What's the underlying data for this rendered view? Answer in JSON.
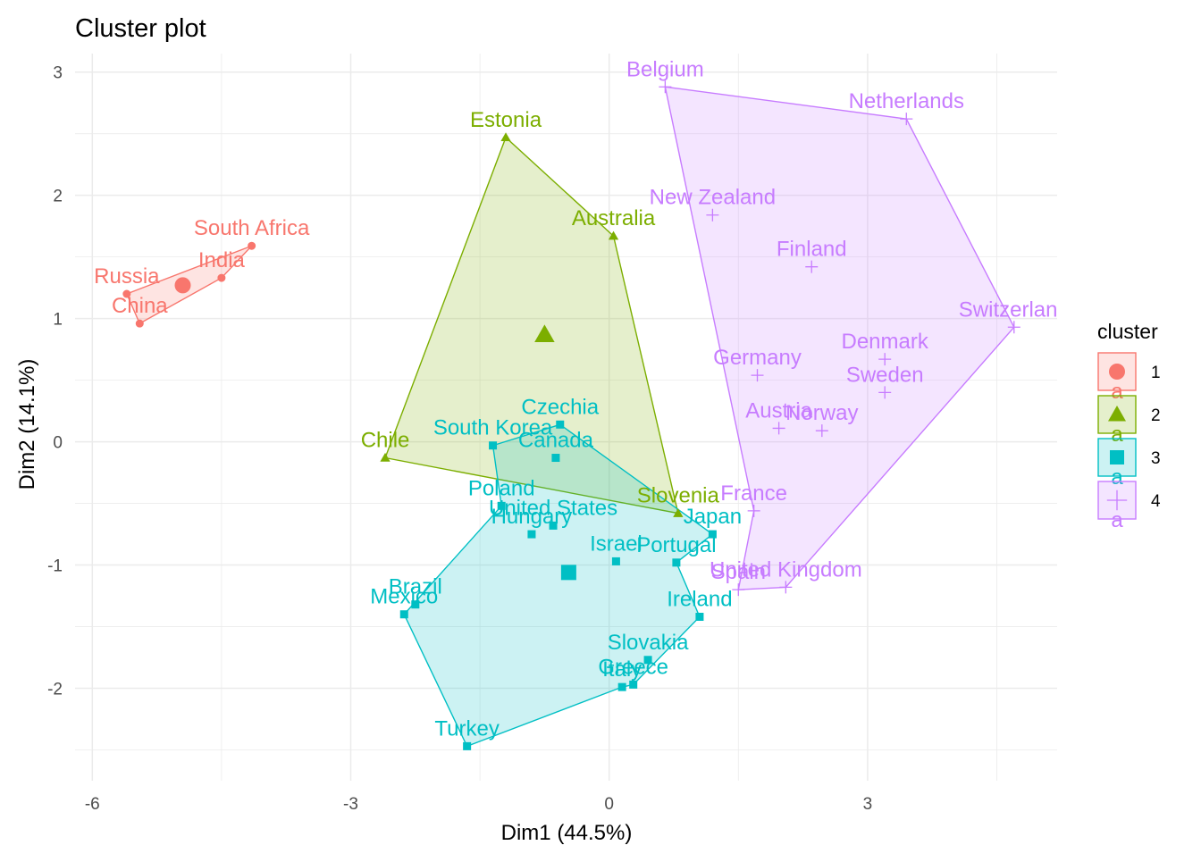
{
  "chart_data": {
    "type": "scatter",
    "title": "Cluster plot",
    "xlabel": "Dim1 (44.5%)",
    "ylabel": "Dim2 (14.1%)",
    "xlim": [
      -6.2,
      5.2
    ],
    "ylim": [
      -2.75,
      3.15
    ],
    "x_ticks": [
      -6,
      -3,
      0,
      3
    ],
    "y_ticks": [
      -2,
      -1,
      0,
      1,
      2,
      3
    ],
    "x_tick_labels": [
      "-6",
      "-3",
      "0",
      "3"
    ],
    "y_tick_labels": [
      "-2",
      "-1",
      "0",
      "1",
      "2",
      "3"
    ],
    "grid": true,
    "legend": {
      "title": "cluster",
      "position": "right",
      "entries": [
        {
          "label": "1",
          "key_text": "a"
        },
        {
          "label": "2",
          "key_text": "a"
        },
        {
          "label": "3",
          "key_text": "a"
        },
        {
          "label": "4",
          "key_text": "a"
        }
      ]
    },
    "clusters": [
      {
        "name": "1",
        "color": "#F8766D",
        "shape": "circle",
        "center": [
          -4.95,
          1.27
        ],
        "hull": [
          "Russia",
          "South Africa",
          "India",
          "China"
        ],
        "points": [
          {
            "label": "Russia",
            "x": -5.6,
            "y": 1.2
          },
          {
            "label": "China",
            "x": -5.45,
            "y": 0.96
          },
          {
            "label": "India",
            "x": -4.5,
            "y": 1.33
          },
          {
            "label": "South Africa",
            "x": -4.15,
            "y": 1.59
          }
        ]
      },
      {
        "name": "2",
        "color": "#7CAE00",
        "shape": "triangle",
        "center": [
          -0.75,
          0.87
        ],
        "hull": [
          "Chile",
          "Estonia",
          "Australia",
          "Slovenia"
        ],
        "points": [
          {
            "label": "Estonia",
            "x": -1.2,
            "y": 2.47
          },
          {
            "label": "Australia",
            "x": 0.05,
            "y": 1.67
          },
          {
            "label": "Chile",
            "x": -2.6,
            "y": -0.13
          },
          {
            "label": "Slovenia",
            "x": 0.8,
            "y": -0.58
          }
        ]
      },
      {
        "name": "3",
        "color": "#00BFC4",
        "shape": "square",
        "center": [
          -0.47,
          -1.06
        ],
        "hull": [
          "South Korea",
          "Czechia",
          "Japan",
          "Portugal",
          "Ireland",
          "Greece",
          "Italy",
          "Turkey",
          "Mexico",
          "Poland"
        ],
        "points": [
          {
            "label": "Czechia",
            "x": -0.57,
            "y": 0.14
          },
          {
            "label": "South Korea",
            "x": -1.35,
            "y": -0.03
          },
          {
            "label": "Canada",
            "x": -0.62,
            "y": -0.13
          },
          {
            "label": "Poland",
            "x": -1.25,
            "y": -0.52
          },
          {
            "label": "United States",
            "x": -0.65,
            "y": -0.68
          },
          {
            "label": "Hungary",
            "x": -0.9,
            "y": -0.75
          },
          {
            "label": "Japan",
            "x": 1.2,
            "y": -0.75
          },
          {
            "label": "Israel",
            "x": 0.08,
            "y": -0.97
          },
          {
            "label": "Portugal",
            "x": 0.78,
            "y": -0.98
          },
          {
            "label": "Brazil",
            "x": -2.25,
            "y": -1.32
          },
          {
            "label": "Mexico",
            "x": -2.38,
            "y": -1.4
          },
          {
            "label": "Ireland",
            "x": 1.05,
            "y": -1.42
          },
          {
            "label": "Slovakia",
            "x": 0.45,
            "y": -1.77
          },
          {
            "label": "Greece",
            "x": 0.28,
            "y": -1.97
          },
          {
            "label": "Italy",
            "x": 0.15,
            "y": -1.99
          },
          {
            "label": "Turkey",
            "x": -1.65,
            "y": -2.47
          }
        ]
      },
      {
        "name": "4",
        "color": "#C77CFF",
        "shape": "plus",
        "center": [
          2.0,
          0.3
        ],
        "hull": [
          "Belgium",
          "Netherlands",
          "Switzerland",
          "United Kingdom",
          "Spain",
          "France"
        ],
        "points": [
          {
            "label": "Belgium",
            "x": 0.65,
            "y": 2.88
          },
          {
            "label": "Netherlands",
            "x": 3.45,
            "y": 2.62
          },
          {
            "label": "New Zealand",
            "x": 1.2,
            "y": 1.84
          },
          {
            "label": "Finland",
            "x": 2.35,
            "y": 1.42
          },
          {
            "label": "Switzerland",
            "x": 4.7,
            "y": 0.93
          },
          {
            "label": "Denmark",
            "x": 3.2,
            "y": 0.67
          },
          {
            "label": "Germany",
            "x": 1.72,
            "y": 0.54
          },
          {
            "label": "Sweden",
            "x": 3.2,
            "y": 0.4
          },
          {
            "label": "Austria",
            "x": 1.97,
            "y": 0.11
          },
          {
            "label": "Norway",
            "x": 2.47,
            "y": 0.09
          },
          {
            "label": "France",
            "x": 1.68,
            "y": -0.56
          },
          {
            "label": "United Kingdom",
            "x": 2.05,
            "y": -1.18
          },
          {
            "label": "Spain",
            "x": 1.5,
            "y": -1.2
          }
        ]
      }
    ]
  }
}
